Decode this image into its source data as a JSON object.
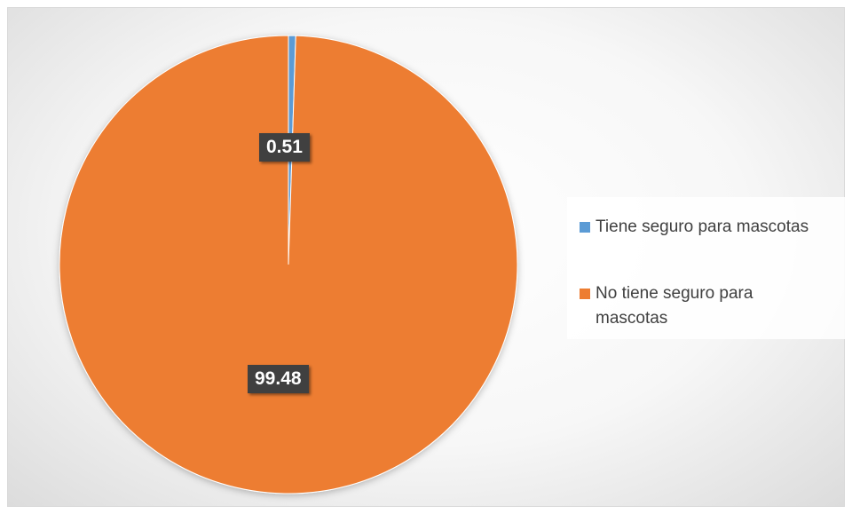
{
  "chart_data": {
    "type": "pie",
    "categories": [
      "Tiene seguro para mascotas",
      "No tiene seguro para mascotas"
    ],
    "values": [
      0.51,
      99.48
    ],
    "value_labels": [
      "0.51",
      "99.48"
    ],
    "colors": [
      "#5b9bd5",
      "#ed7d31"
    ],
    "title": "",
    "legend_position": "right",
    "data_labels": true
  }
}
